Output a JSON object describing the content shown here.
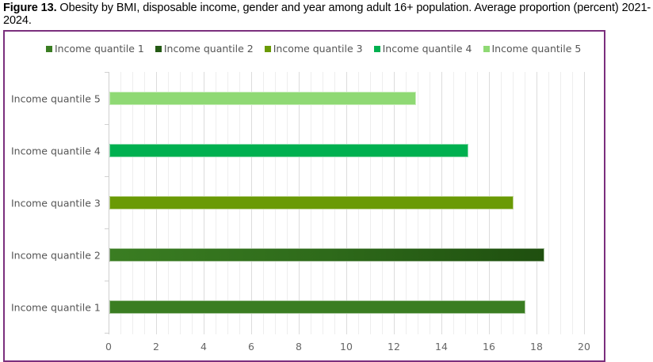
{
  "caption": {
    "label": "Figure 13.",
    "text": " Obesity by BMI, disposable income, gender and year among adult 16+ population.  Average proportion (percent) 2021-2024."
  },
  "legend": [
    {
      "label": "Income quantile 1",
      "color": "#3a7d22"
    },
    {
      "label": "Income quantile 2",
      "color": "#245a14"
    },
    {
      "label": "Income quantile 3",
      "color": "#6a9a05"
    },
    {
      "label": "Income quantile 4",
      "color": "#00b050"
    },
    {
      "label": "Income quantile 5",
      "color": "#8fd974"
    }
  ],
  "chart_data": {
    "type": "bar",
    "orientation": "horizontal",
    "title": "Obesity by BMI, disposable income, gender and year among adult 16+ population. Average proportion (percent) 2021-2024.",
    "categories": [
      "Income quantile 1",
      "Income quantile 2",
      "Income quantile 3",
      "Income quantile 4",
      "Income quantile 5"
    ],
    "series": [
      {
        "name": "Income quantile 1",
        "values": [
          17.5,
          null,
          null,
          null,
          null
        ],
        "color": "#3a7d22"
      },
      {
        "name": "Income quantile 2",
        "values": [
          null,
          18.3,
          null,
          null,
          null
        ],
        "color": "#245a14"
      },
      {
        "name": "Income quantile 3",
        "values": [
          null,
          null,
          17.0,
          null,
          null
        ],
        "color": "#6a9a05"
      },
      {
        "name": "Income quantile 4",
        "values": [
          null,
          null,
          null,
          15.1,
          null
        ],
        "color": "#00b050"
      },
      {
        "name": "Income quantile 5",
        "values": [
          null,
          null,
          null,
          null,
          12.9
        ],
        "color": "#8fd974"
      }
    ],
    "values": [
      17.5,
      18.3,
      17.0,
      15.1,
      12.9
    ],
    "xlabel": "",
    "ylabel": "",
    "xlim": [
      0,
      20
    ],
    "xticks": [
      "0",
      "2",
      "4",
      "6",
      "8",
      "10",
      "12",
      "14",
      "16",
      "18",
      "20"
    ],
    "grid": "vertical major and minor",
    "legend_position": "top"
  }
}
